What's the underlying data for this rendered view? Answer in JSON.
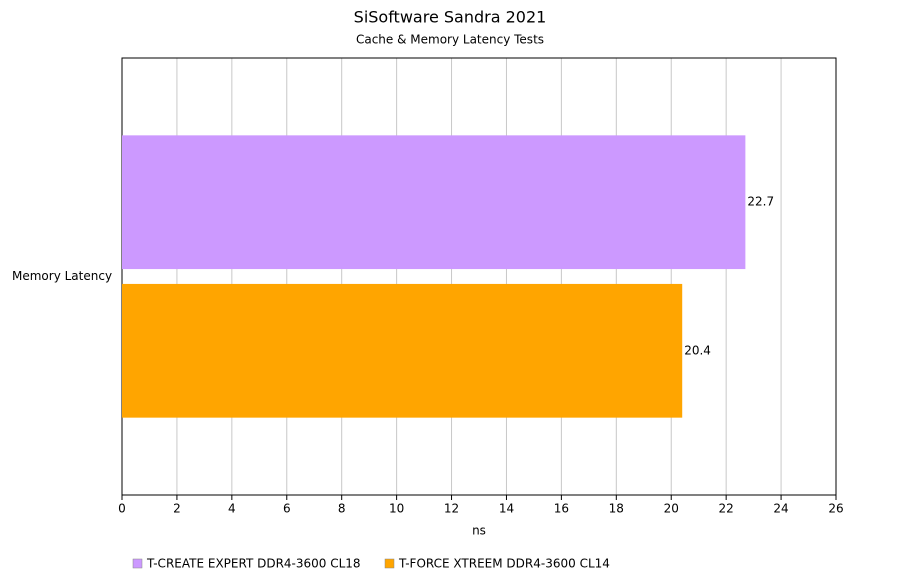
{
  "chart_data": {
    "type": "bar",
    "orientation": "horizontal",
    "title": "SiSoftware Sandra 2021",
    "subtitle": "Cache & Memory Latency Tests",
    "x_label": "ns",
    "categories": [
      "Memory Latency"
    ],
    "series": [
      {
        "name": "T-CREATE EXPERT DDR4-3600 CL18",
        "color": "#cc99ff",
        "values": [
          22.7
        ]
      },
      {
        "name": "T-FORCE XTREEM DDR4-3600 CL14",
        "color": "#ffa500",
        "values": [
          20.4
        ]
      }
    ],
    "xlim": [
      0,
      26
    ],
    "xticks": [
      0,
      2,
      4,
      6,
      8,
      10,
      12,
      14,
      16,
      18,
      20,
      22,
      24,
      26
    ],
    "grid": true,
    "legend": "bottom"
  }
}
